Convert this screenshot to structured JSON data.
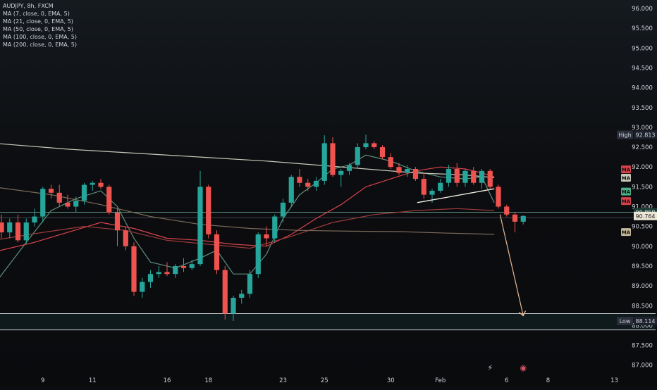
{
  "chart_data": {
    "type": "candlestick",
    "symbol_line": "AUDJPY, 8h, FXCM",
    "indicators": [
      {
        "label": "MA (7, close, 0, EMA, 5)",
        "color": "#5f8f7b"
      },
      {
        "label": "MA (21, close, 0, EMA, 5)",
        "color": "#d9434c"
      },
      {
        "label": "MA (50, close, 0, EMA, 5)",
        "color": "#9b3a3a"
      },
      {
        "label": "MA (100, close, 0, EMA, 5)",
        "color": "#7b6a5a"
      },
      {
        "label": "MA (200, close, 0, EMA, 5)",
        "color": "#c8c8b8"
      }
    ],
    "y_axis": {
      "ticks": [
        96.0,
        95.5,
        95.0,
        94.5,
        94.0,
        93.5,
        93.0,
        92.5,
        92.0,
        91.5,
        91.0,
        90.5,
        90.0,
        89.5,
        89.0,
        88.5,
        88.0,
        87.5,
        87.0
      ],
      "tick_labels": [
        "96.000",
        "95.500",
        "95.000",
        "94.500",
        "94.000",
        "93.500",
        "93.000",
        "92.500",
        "92.000",
        "91.500",
        "91.000",
        "90.500",
        "90.000",
        "89.500",
        "89.000",
        "88.500",
        "88.000",
        "87.500",
        "87.000"
      ],
      "ylim": [
        86.8,
        96.2
      ]
    },
    "x_axis": {
      "labels": [
        {
          "text": "9",
          "index": 5
        },
        {
          "text": "11",
          "index": 11
        },
        {
          "text": "16",
          "index": 20
        },
        {
          "text": "18",
          "index": 25
        },
        {
          "text": "23",
          "index": 34
        },
        {
          "text": "25",
          "index": 39
        },
        {
          "text": "30",
          "index": 47
        },
        {
          "text": "Feb",
          "index": 53
        },
        {
          "text": "6",
          "index": 61
        },
        {
          "text": "8",
          "index": 66
        },
        {
          "text": "13",
          "index": 74
        }
      ]
    },
    "price_labels": [
      {
        "label": "High",
        "value": "92.813",
        "price": 92.813
      },
      {
        "label": "",
        "value": "90.858",
        "price": 90.858
      },
      {
        "label": "",
        "value": "90.764",
        "price": 90.764
      },
      {
        "label": "Low",
        "value": "88.114",
        "price": 88.114
      }
    ],
    "ma_badges": [
      {
        "text": "MA",
        "price": 91.93,
        "color": "#d9434c"
      },
      {
        "text": "MA",
        "price": 91.72,
        "color": "#c8c8b8"
      },
      {
        "text": "MA",
        "price": 91.37,
        "color": "#4caf85"
      },
      {
        "text": "MA",
        "price": 91.13,
        "color": "#d9434c"
      },
      {
        "text": "MA",
        "price": 90.35,
        "color": "#c8b89a"
      }
    ],
    "candles": [
      {
        "o": 90.6,
        "h": 90.8,
        "l": 90.2,
        "c": 90.35
      },
      {
        "o": 90.35,
        "h": 90.7,
        "l": 90.2,
        "c": 90.6
      },
      {
        "o": 90.6,
        "h": 90.8,
        "l": 90.1,
        "c": 90.15
      },
      {
        "o": 90.15,
        "h": 90.7,
        "l": 90.05,
        "c": 90.6
      },
      {
        "o": 90.6,
        "h": 90.95,
        "l": 90.5,
        "c": 90.75
      },
      {
        "o": 90.75,
        "h": 91.5,
        "l": 90.6,
        "c": 91.45
      },
      {
        "o": 91.45,
        "h": 91.55,
        "l": 91.2,
        "c": 91.35
      },
      {
        "o": 91.35,
        "h": 91.55,
        "l": 91.0,
        "c": 91.1
      },
      {
        "o": 91.1,
        "h": 91.3,
        "l": 90.95,
        "c": 91.0
      },
      {
        "o": 91.0,
        "h": 91.25,
        "l": 90.85,
        "c": 91.15
      },
      {
        "o": 91.15,
        "h": 91.6,
        "l": 91.05,
        "c": 91.55
      },
      {
        "o": 91.55,
        "h": 91.65,
        "l": 91.4,
        "c": 91.6
      },
      {
        "o": 91.6,
        "h": 91.7,
        "l": 91.45,
        "c": 91.5
      },
      {
        "o": 91.5,
        "h": 91.55,
        "l": 90.8,
        "c": 90.85
      },
      {
        "o": 90.85,
        "h": 90.95,
        "l": 90.0,
        "c": 90.4
      },
      {
        "o": 90.4,
        "h": 90.5,
        "l": 89.9,
        "c": 90.0
      },
      {
        "o": 90.0,
        "h": 90.1,
        "l": 88.75,
        "c": 88.85
      },
      {
        "o": 88.85,
        "h": 89.2,
        "l": 88.7,
        "c": 89.1
      },
      {
        "o": 89.1,
        "h": 89.4,
        "l": 88.95,
        "c": 89.3
      },
      {
        "o": 89.3,
        "h": 89.5,
        "l": 89.2,
        "c": 89.35
      },
      {
        "o": 89.35,
        "h": 89.6,
        "l": 89.25,
        "c": 89.3
      },
      {
        "o": 89.3,
        "h": 89.55,
        "l": 89.2,
        "c": 89.5
      },
      {
        "o": 89.5,
        "h": 89.7,
        "l": 89.35,
        "c": 89.45
      },
      {
        "o": 89.45,
        "h": 89.65,
        "l": 89.4,
        "c": 89.55
      },
      {
        "o": 89.55,
        "h": 91.9,
        "l": 89.5,
        "c": 91.5
      },
      {
        "o": 91.5,
        "h": 91.55,
        "l": 90.2,
        "c": 90.3
      },
      {
        "o": 90.3,
        "h": 90.4,
        "l": 89.3,
        "c": 89.4
      },
      {
        "o": 89.4,
        "h": 89.5,
        "l": 88.15,
        "c": 88.3
      },
      {
        "o": 88.3,
        "h": 88.75,
        "l": 88.114,
        "c": 88.7
      },
      {
        "o": 88.7,
        "h": 88.9,
        "l": 88.55,
        "c": 88.8
      },
      {
        "o": 88.8,
        "h": 89.4,
        "l": 88.7,
        "c": 89.3
      },
      {
        "o": 89.3,
        "h": 90.35,
        "l": 89.2,
        "c": 90.3
      },
      {
        "o": 90.3,
        "h": 90.5,
        "l": 90.0,
        "c": 90.2
      },
      {
        "o": 90.2,
        "h": 90.8,
        "l": 90.1,
        "c": 90.75
      },
      {
        "o": 90.75,
        "h": 91.2,
        "l": 90.6,
        "c": 91.1
      },
      {
        "o": 91.1,
        "h": 91.8,
        "l": 91.0,
        "c": 91.75
      },
      {
        "o": 91.75,
        "h": 91.95,
        "l": 91.5,
        "c": 91.6
      },
      {
        "o": 91.6,
        "h": 91.7,
        "l": 91.4,
        "c": 91.5
      },
      {
        "o": 91.5,
        "h": 91.75,
        "l": 91.4,
        "c": 91.65
      },
      {
        "o": 91.65,
        "h": 92.8,
        "l": 91.55,
        "c": 92.6
      },
      {
        "o": 92.6,
        "h": 92.75,
        "l": 91.75,
        "c": 91.8
      },
      {
        "o": 91.8,
        "h": 91.95,
        "l": 91.5,
        "c": 91.9
      },
      {
        "o": 91.9,
        "h": 92.1,
        "l": 91.8,
        "c": 92.05
      },
      {
        "o": 92.05,
        "h": 92.6,
        "l": 91.95,
        "c": 92.5
      },
      {
        "o": 92.5,
        "h": 92.813,
        "l": 92.45,
        "c": 92.6
      },
      {
        "o": 92.6,
        "h": 92.65,
        "l": 92.45,
        "c": 92.5
      },
      {
        "o": 92.5,
        "h": 92.55,
        "l": 92.2,
        "c": 92.25
      },
      {
        "o": 92.25,
        "h": 92.35,
        "l": 91.95,
        "c": 92.0
      },
      {
        "o": 92.0,
        "h": 92.1,
        "l": 91.8,
        "c": 91.85
      },
      {
        "o": 91.85,
        "h": 92.05,
        "l": 91.75,
        "c": 91.95
      },
      {
        "o": 91.95,
        "h": 92.0,
        "l": 91.65,
        "c": 91.7
      },
      {
        "o": 91.7,
        "h": 91.85,
        "l": 91.2,
        "c": 91.3
      },
      {
        "o": 91.3,
        "h": 91.45,
        "l": 91.1,
        "c": 91.4
      },
      {
        "o": 91.4,
        "h": 91.7,
        "l": 91.35,
        "c": 91.6
      },
      {
        "o": 91.6,
        "h": 92.05,
        "l": 91.5,
        "c": 91.95
      },
      {
        "o": 91.95,
        "h": 92.1,
        "l": 91.5,
        "c": 91.6
      },
      {
        "o": 91.6,
        "h": 91.95,
        "l": 91.5,
        "c": 91.9
      },
      {
        "o": 91.9,
        "h": 92.0,
        "l": 91.55,
        "c": 91.6
      },
      {
        "o": 91.6,
        "h": 91.95,
        "l": 91.45,
        "c": 91.9
      },
      {
        "o": 91.9,
        "h": 91.95,
        "l": 91.45,
        "c": 91.5
      },
      {
        "o": 91.5,
        "h": 91.55,
        "l": 90.95,
        "c": 91.0
      },
      {
        "o": 91.0,
        "h": 91.05,
        "l": 90.75,
        "c": 90.8
      },
      {
        "o": 90.8,
        "h": 90.85,
        "l": 90.35,
        "c": 90.62
      },
      {
        "o": 90.62,
        "h": 90.78,
        "l": 90.55,
        "c": 90.764
      }
    ],
    "ma_series": [
      {
        "name": "MA 7",
        "color": "#5f8f7b",
        "points": [
          [
            -1,
            89.0
          ],
          [
            3,
            90.1
          ],
          [
            6,
            90.9
          ],
          [
            9,
            91.2
          ],
          [
            12,
            91.4
          ],
          [
            14,
            91.0
          ],
          [
            16,
            90.2
          ],
          [
            18,
            89.6
          ],
          [
            21,
            89.45
          ],
          [
            24,
            89.7
          ],
          [
            26,
            89.9
          ],
          [
            28,
            89.3
          ],
          [
            30,
            89.3
          ],
          [
            32,
            89.8
          ],
          [
            34,
            90.7
          ],
          [
            36,
            91.3
          ],
          [
            38,
            91.6
          ],
          [
            40,
            91.95
          ],
          [
            42,
            92.05
          ],
          [
            44,
            92.3
          ],
          [
            47,
            92.15
          ],
          [
            50,
            91.9
          ],
          [
            53,
            91.75
          ],
          [
            56,
            91.7
          ],
          [
            58,
            91.75
          ],
          [
            59.5,
            91.1
          ]
        ]
      },
      {
        "name": "MA 21",
        "color": "#d9434c",
        "points": [
          [
            -1,
            89.85
          ],
          [
            4,
            90.1
          ],
          [
            8,
            90.35
          ],
          [
            12,
            90.6
          ],
          [
            16,
            90.45
          ],
          [
            20,
            90.2
          ],
          [
            24,
            90.15
          ],
          [
            28,
            90.05
          ],
          [
            32,
            90.0
          ],
          [
            35,
            90.3
          ],
          [
            38,
            90.7
          ],
          [
            41,
            91.05
          ],
          [
            44,
            91.5
          ],
          [
            47,
            91.7
          ],
          [
            50,
            91.9
          ],
          [
            53,
            92.0
          ],
          [
            56,
            91.95
          ],
          [
            58,
            91.85
          ],
          [
            59.5,
            91.75
          ]
        ]
      },
      {
        "name": "MA 50",
        "color": "#9b3a3a",
        "points": [
          [
            -1,
            90.15
          ],
          [
            5,
            90.35
          ],
          [
            10,
            90.5
          ],
          [
            15,
            90.4
          ],
          [
            20,
            90.15
          ],
          [
            25,
            90.05
          ],
          [
            30,
            89.95
          ],
          [
            35,
            90.25
          ],
          [
            40,
            90.6
          ],
          [
            45,
            90.8
          ],
          [
            50,
            90.9
          ],
          [
            55,
            90.95
          ],
          [
            59.5,
            90.9
          ]
        ]
      },
      {
        "name": "MA 100",
        "color": "#7b6a5a",
        "points": [
          [
            -1,
            91.5
          ],
          [
            6,
            91.3
          ],
          [
            12,
            91.05
          ],
          [
            18,
            90.75
          ],
          [
            24,
            90.55
          ],
          [
            30,
            90.45
          ],
          [
            36,
            90.4
          ],
          [
            42,
            90.38
          ],
          [
            48,
            90.37
          ],
          [
            54,
            90.33
          ],
          [
            59.5,
            90.3
          ]
        ]
      },
      {
        "name": "MA 200",
        "color": "#c8c8b8",
        "points": [
          [
            -1,
            92.6
          ],
          [
            8,
            92.45
          ],
          [
            16,
            92.35
          ],
          [
            24,
            92.25
          ],
          [
            32,
            92.15
          ],
          [
            38,
            92.05
          ],
          [
            44,
            91.95
          ],
          [
            50,
            91.85
          ],
          [
            56,
            91.8
          ],
          [
            59.5,
            91.73
          ]
        ]
      }
    ],
    "drawings": {
      "trendline": {
        "from": [
          50.2,
          91.1
        ],
        "to": [
          59.5,
          91.45
        ],
        "color": "#f0ece0"
      },
      "projection_arrow": {
        "from": [
          60.2,
          90.8
        ],
        "to": [
          63.0,
          88.25
        ],
        "color": "#e8b896"
      },
      "horizontal_lines": [
        {
          "price": 90.858,
          "color": "#5a8f7a"
        },
        {
          "price": 90.72,
          "color": "#3a3f48"
        },
        {
          "price": 88.3,
          "color": "#c9ccd1"
        },
        {
          "price": 87.89,
          "color": "#c9ccd1"
        }
      ],
      "event_icons": [
        {
          "index": 59,
          "glyph": "⚡",
          "color": "#c8ccd2"
        },
        {
          "index": 63,
          "glyph": "◉",
          "color": "#e05b6a"
        }
      ]
    },
    "colors": {
      "up": "#26a69a",
      "down": "#ef5350",
      "background": "#0c0d10",
      "text": "#d1d4dc"
    }
  }
}
